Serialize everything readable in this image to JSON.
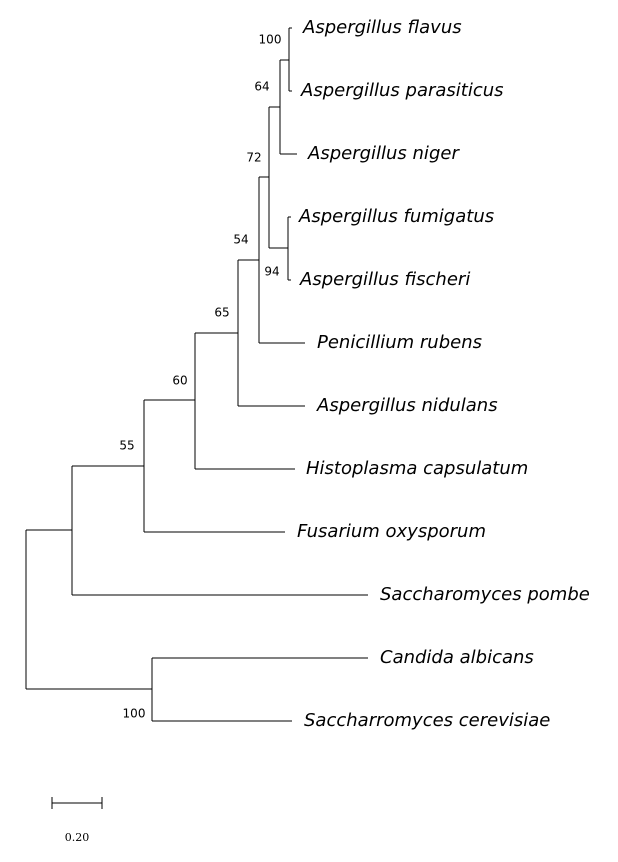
{
  "taxa": [
    "Aspergillus flavus",
    "Aspergillus parasiticus",
    "Aspergillus niger",
    "Aspergillus fumigatus",
    "Aspergillus fischeri",
    "Penicillium rubens",
    "Aspergillus nidulans",
    "Histoplasma capsulatum",
    "Fusarium oxysporum",
    "Saccharomyces pombe",
    "Candida albicans",
    "Saccharromyces cerevisiae"
  ],
  "bootstrap": [
    100,
    64,
    72,
    94,
    54,
    65,
    60,
    55,
    100
  ],
  "scale_bar": {
    "label": "0.20"
  }
}
